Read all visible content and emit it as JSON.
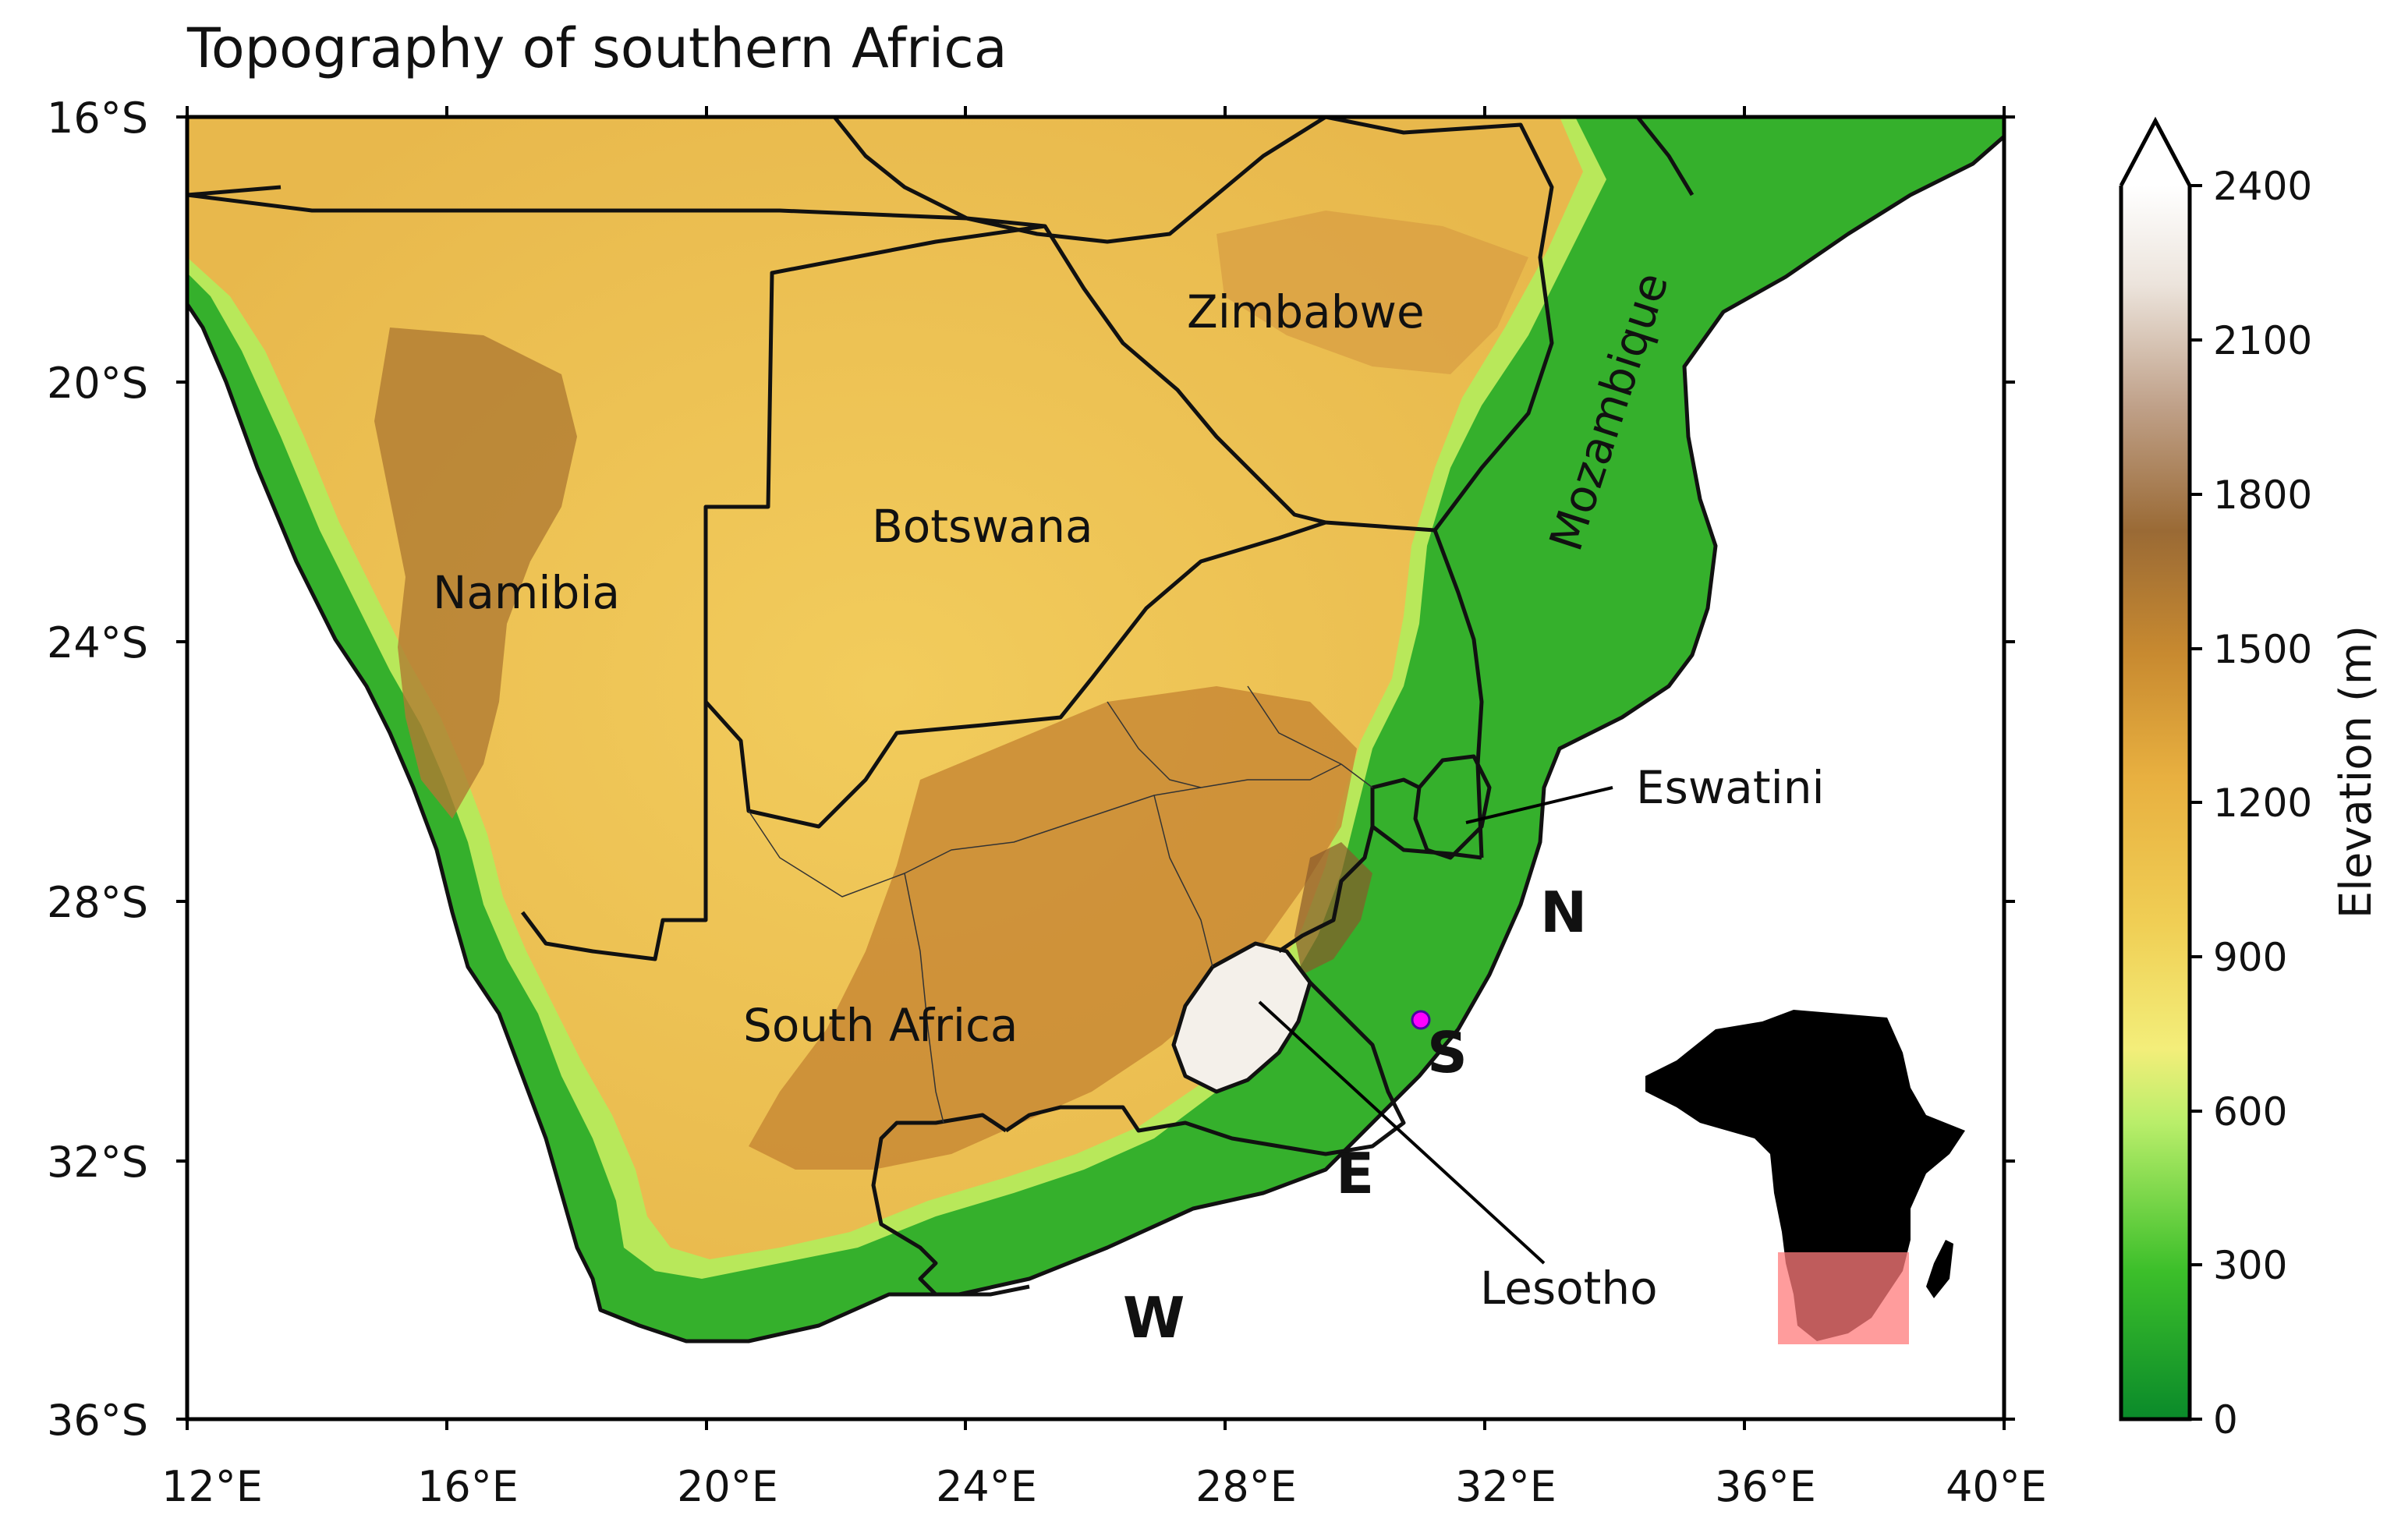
{
  "title": "Topography of southern Africa",
  "lat_ticks": [
    "16°S",
    "20°S",
    "24°S",
    "28°S",
    "32°S",
    "36°S"
  ],
  "lon_ticks": [
    "12°E",
    "16°E",
    "20°E",
    "24°E",
    "28°E",
    "32°E",
    "36°E",
    "40°E"
  ],
  "countries": {
    "namibia": "Namibia",
    "botswana": "Botswana",
    "zimbabwe": "Zimbabwe",
    "mozambique": "Mozambique",
    "south_africa": "South Africa",
    "eswatini": "Eswatini",
    "lesotho": "Lesotho"
  },
  "regions": {
    "w": "W",
    "e": "E",
    "s": "S",
    "n": "N"
  },
  "colorbar": {
    "label": "Elevation (m)",
    "ticks": [
      "0",
      "300",
      "600",
      "900",
      "1200",
      "1500",
      "1800",
      "2100",
      "2400"
    ],
    "extend": "max"
  },
  "colors": {
    "ocean": "#ffffff",
    "lowland": "#1e9a2a",
    "plateau": "#e8bb4a",
    "highland": "#8a5a2a",
    "peak": "#ffffff",
    "station_marker": "#ff00ff",
    "inset_highlight": "#ff7b7b"
  }
}
